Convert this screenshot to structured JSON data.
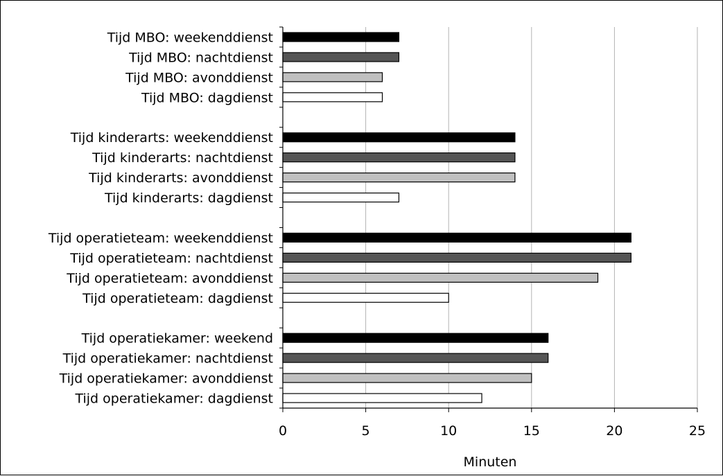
{
  "chart_data": {
    "type": "bar",
    "orientation": "horizontal",
    "title": "",
    "xlabel": "Minuten",
    "ylabel": "",
    "xlim": [
      0,
      25
    ],
    "xticks": [
      0,
      5,
      10,
      15,
      20,
      25
    ],
    "grid": true,
    "legend": "none",
    "categories": [
      "Tijd MBO: weekenddienst",
      "Tijd MBO: nachtdienst",
      "Tijd MBO: avonddienst",
      "Tijd MBO: dagdienst",
      "",
      "Tijd kinderarts: weekenddienst",
      "Tijd kinderarts: nachtdienst",
      "Tijd kinderarts: avonddienst",
      "Tijd kinderarts: dagdienst",
      "",
      "Tijd operatieteam: weekenddienst",
      "Tijd operatieteam: nachtdienst",
      "Tijd operatieteam: avonddienst",
      "Tijd operatieteam: dagdienst",
      "",
      "Tijd operatiekamer: weekend",
      "Tijd operatiekamer: nachtdienst",
      "Tijd operatiekamer: avonddienst",
      "Tijd operatiekamer: dagdienst"
    ],
    "values": [
      7,
      7,
      6,
      6,
      null,
      14,
      14,
      14,
      7,
      null,
      21,
      21,
      19,
      10,
      null,
      16,
      16,
      15,
      12
    ],
    "shift_colors": {
      "weekenddienst": "#000000",
      "nachtdienst": "#555555",
      "avonddienst": "#c0c0c0",
      "dagdienst": "#ffffff"
    },
    "bar_colors": [
      "#000000",
      "#555555",
      "#c0c0c0",
      "#ffffff",
      null,
      "#000000",
      "#555555",
      "#c0c0c0",
      "#ffffff",
      null,
      "#000000",
      "#555555",
      "#c0c0c0",
      "#ffffff",
      null,
      "#000000",
      "#555555",
      "#c0c0c0",
      "#ffffff"
    ],
    "gridline_color": "#b3b3b3",
    "axis_color": "#000000"
  }
}
